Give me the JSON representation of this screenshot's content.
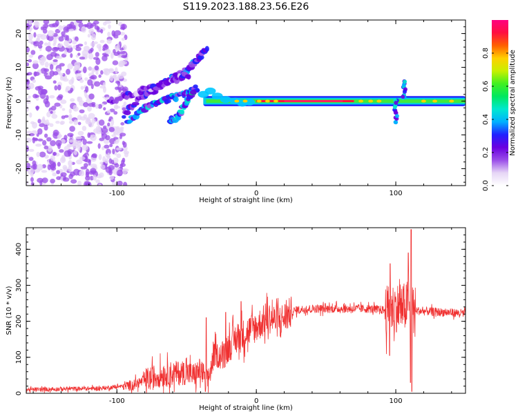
{
  "title": "S119.2023.188.23.56.E26",
  "chart_data": [
    {
      "type": "heatmap",
      "xlabel": "Height of straight line (km)",
      "ylabel": "Frequency (Hz)",
      "xlim": [
        -165,
        150
      ],
      "ylim": [
        -25,
        24
      ],
      "xticks": [
        -100,
        0,
        100
      ],
      "yticks": [
        -20,
        -10,
        0,
        10,
        20
      ],
      "colorbar": {
        "label": "Normalized spectral amplitude",
        "ticks": [
          0.0,
          0.2,
          0.4,
          0.6,
          0.8
        ],
        "range": [
          0,
          1
        ]
      },
      "colormap": [
        "#ffffff",
        "#e6d6f6",
        "#9a4ee8",
        "#6a00e0",
        "#2020ff",
        "#00b0ff",
        "#00e8d0",
        "#00e860",
        "#40f020",
        "#c8f000",
        "#ffd000",
        "#ff6000",
        "#ff1040",
        "#ff0080"
      ],
      "features": [
        {
          "name": "noise",
          "x_range": [
            -165,
            -93
          ],
          "f_range": [
            -25,
            24
          ],
          "amplitude": 0.15
        },
        {
          "name": "chirp",
          "points": [
            [
              -95,
              -4
            ],
            [
              -80,
              2
            ],
            [
              -70,
              4
            ],
            [
              -60,
              7
            ],
            [
              -50,
              9
            ],
            [
              -43,
              12
            ],
            [
              -35,
              16
            ]
          ],
          "amplitude": 0.25
        },
        {
          "name": "chirp",
          "points": [
            [
              -105,
              0
            ],
            [
              -90,
              2
            ],
            [
              -75,
              4
            ],
            [
              -60,
              6
            ],
            [
              -48,
              8
            ]
          ],
          "amplitude": 0.2
        },
        {
          "name": "chirp",
          "points": [
            [
              -92,
              -6
            ],
            [
              -80,
              -2
            ],
            [
              -70,
              0
            ],
            [
              -60,
              1
            ],
            [
              -50,
              2
            ],
            [
              -42,
              4
            ]
          ],
          "amplitude": 0.3
        },
        {
          "name": "chirp",
          "points": [
            [
              -62,
              -6
            ],
            [
              -55,
              -4
            ],
            [
              -50,
              0
            ],
            [
              -45,
              3
            ]
          ],
          "amplitude": 0.35
        },
        {
          "name": "steady-tone",
          "x_range": [
            -38,
            150
          ],
          "f": 0,
          "amplitude": 0.9
        },
        {
          "name": "burst",
          "x": 100,
          "f_range": [
            -7,
            1
          ],
          "amplitude": 0.3
        },
        {
          "name": "burst",
          "x": 106,
          "f_range": [
            -1,
            6
          ],
          "amplitude": 0.3
        }
      ]
    },
    {
      "type": "line",
      "xlabel": "Height of straight line (km)",
      "ylabel": "SNR (10 * v/v)",
      "xlim": [
        -165,
        150
      ],
      "ylim": [
        0,
        460
      ],
      "xticks": [
        -100,
        0,
        100
      ],
      "yticks": [
        0,
        100,
        200,
        300,
        400
      ],
      "color": "#f03030",
      "series": [
        {
          "x": [
            -165,
            -140,
            -110,
            -90,
            -80,
            -70,
            -60,
            -50,
            -45,
            -40,
            -35,
            -30,
            -25,
            -20,
            -15,
            -10,
            -5,
            0,
            5,
            10,
            15,
            20,
            25,
            30,
            40,
            60,
            80,
            95,
            100,
            105,
            108,
            111,
            113,
            120,
            135,
            150
          ],
          "y": [
            10,
            12,
            14,
            22,
            35,
            50,
            55,
            58,
            50,
            65,
            30,
            110,
            100,
            130,
            150,
            160,
            175,
            185,
            200,
            210,
            200,
            210,
            225,
            232,
            235,
            235,
            235,
            230,
            240,
            235,
            245,
            220,
            230,
            228,
            225,
            222
          ]
        }
      ]
    }
  ]
}
